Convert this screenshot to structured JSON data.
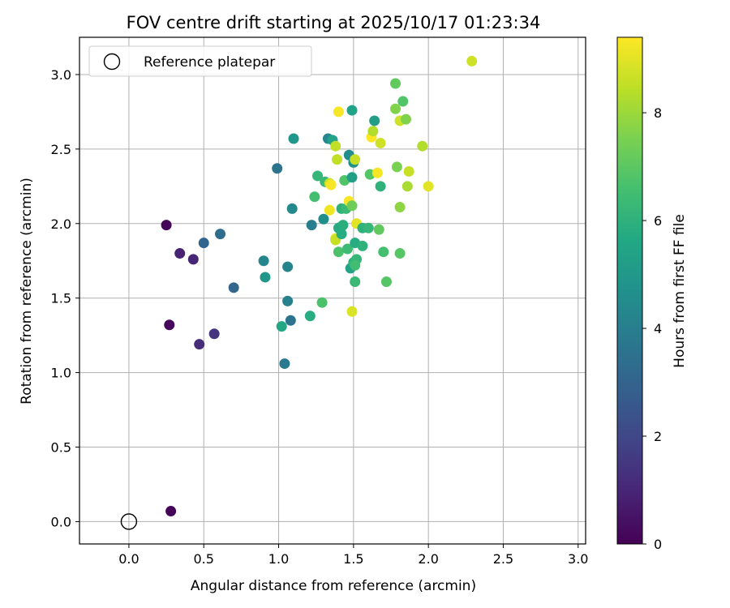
{
  "chart_data": {
    "type": "scatter",
    "title": "FOV centre drift starting at 2025/10/17 01:23:34",
    "xlabel": "Angular distance from reference (arcmin)",
    "ylabel": "Rotation from reference (arcmin)",
    "xlim": [
      -0.33,
      3.05
    ],
    "ylim": [
      -0.15,
      3.25
    ],
    "x_ticks": [
      "0.0",
      "0.5",
      "1.0",
      "1.5",
      "2.0",
      "2.5",
      "3.0"
    ],
    "y_ticks": [
      "0.0",
      "0.5",
      "1.0",
      "1.5",
      "2.0",
      "2.5",
      "3.0"
    ],
    "grid": true,
    "legend": {
      "placement": "top-left",
      "entries": [
        "Reference platepar"
      ]
    },
    "reference_point": {
      "x": 0.0,
      "y": 0.0
    },
    "colorbar": {
      "label": "Hours from first FF file",
      "colormap": "viridis",
      "range": [
        0,
        9.4
      ],
      "ticks": [
        "0",
        "2",
        "4",
        "6",
        "8"
      ]
    },
    "points": [
      [
        0.28,
        0.07,
        0.1
      ],
      [
        0.25,
        1.99,
        0.1
      ],
      [
        0.27,
        1.32,
        0.2
      ],
      [
        0.34,
        1.8,
        0.9
      ],
      [
        0.43,
        1.76,
        1.0
      ],
      [
        0.47,
        1.19,
        1.2
      ],
      [
        0.57,
        1.26,
        1.4
      ],
      [
        0.5,
        1.87,
        3.0
      ],
      [
        0.61,
        1.93,
        3.3
      ],
      [
        0.7,
        1.57,
        3.1
      ],
      [
        0.99,
        2.37,
        3.6
      ],
      [
        1.04,
        1.06,
        3.8
      ],
      [
        1.06,
        1.48,
        4.1
      ],
      [
        1.06,
        1.71,
        4.2
      ],
      [
        1.08,
        1.35,
        3.6
      ],
      [
        0.9,
        1.75,
        4.2
      ],
      [
        0.91,
        1.64,
        4.9
      ],
      [
        1.09,
        2.1,
        4.4
      ],
      [
        1.1,
        2.57,
        4.9
      ],
      [
        1.02,
        1.31,
        5.6
      ],
      [
        1.21,
        1.38,
        5.8
      ],
      [
        1.22,
        1.99,
        4.0
      ],
      [
        1.3,
        2.03,
        4.6
      ],
      [
        1.33,
        2.57,
        4.3
      ],
      [
        1.36,
        2.56,
        5.4
      ],
      [
        1.29,
        1.47,
        6.7
      ],
      [
        1.26,
        2.32,
        6.2
      ],
      [
        1.24,
        2.18,
        6.6
      ],
      [
        1.31,
        2.28,
        6.3
      ],
      [
        1.34,
        2.27,
        8.6
      ],
      [
        1.35,
        2.26,
        9.3
      ],
      [
        1.34,
        2.09,
        9.2
      ],
      [
        1.38,
        1.9,
        9.0
      ],
      [
        1.38,
        1.89,
        8.6
      ],
      [
        1.39,
        2.43,
        8.5
      ],
      [
        1.38,
        2.52,
        8.5
      ],
      [
        1.4,
        2.75,
        9.3
      ],
      [
        1.4,
        1.81,
        6.7
      ],
      [
        1.4,
        1.97,
        5.8
      ],
      [
        1.42,
        1.98,
        5.7
      ],
      [
        1.43,
        1.99,
        5.9
      ],
      [
        1.42,
        2.1,
        6.0
      ],
      [
        1.45,
        2.1,
        6.3
      ],
      [
        1.44,
        2.29,
        6.8
      ],
      [
        1.47,
        2.46,
        4.6
      ],
      [
        1.49,
        2.31,
        5.3
      ],
      [
        1.5,
        2.41,
        4.7
      ],
      [
        1.51,
        2.43,
        8.6
      ],
      [
        1.49,
        2.76,
        5.4
      ],
      [
        1.47,
        2.15,
        9.3
      ],
      [
        1.49,
        2.12,
        7.3
      ],
      [
        1.46,
        1.83,
        6.4
      ],
      [
        1.48,
        1.7,
        5.4
      ],
      [
        1.5,
        1.74,
        6.0
      ],
      [
        1.51,
        1.87,
        5.8
      ],
      [
        1.52,
        1.76,
        6.2
      ],
      [
        1.51,
        1.72,
        6.5
      ],
      [
        1.51,
        1.61,
        6.3
      ],
      [
        1.49,
        1.41,
        8.9
      ],
      [
        1.52,
        2.0,
        9.0
      ],
      [
        1.42,
        1.93,
        5.8
      ],
      [
        1.56,
        1.85,
        6.0
      ],
      [
        1.56,
        1.97,
        6.0
      ],
      [
        1.6,
        1.97,
        6.2
      ],
      [
        1.61,
        2.33,
        6.9
      ],
      [
        1.62,
        2.58,
        9.4
      ],
      [
        1.63,
        2.62,
        8.3
      ],
      [
        1.64,
        2.69,
        5.2
      ],
      [
        1.66,
        2.34,
        9.3
      ],
      [
        1.68,
        2.54,
        8.7
      ],
      [
        1.68,
        2.25,
        6.0
      ],
      [
        1.67,
        1.96,
        7.1
      ],
      [
        1.7,
        1.81,
        6.6
      ],
      [
        1.72,
        1.61,
        6.9
      ],
      [
        1.78,
        2.94,
        7.1
      ],
      [
        1.78,
        2.77,
        7.6
      ],
      [
        1.79,
        2.38,
        7.5
      ],
      [
        1.81,
        2.69,
        8.7
      ],
      [
        1.81,
        2.11,
        7.8
      ],
      [
        1.81,
        1.8,
        6.9
      ],
      [
        1.83,
        2.82,
        6.8
      ],
      [
        1.85,
        2.7,
        7.6
      ],
      [
        1.86,
        2.25,
        8.2
      ],
      [
        1.87,
        2.35,
        8.6
      ],
      [
        1.96,
        2.52,
        8.3
      ],
      [
        2.0,
        2.25,
        9.0
      ],
      [
        2.29,
        3.09,
        8.7
      ]
    ]
  }
}
